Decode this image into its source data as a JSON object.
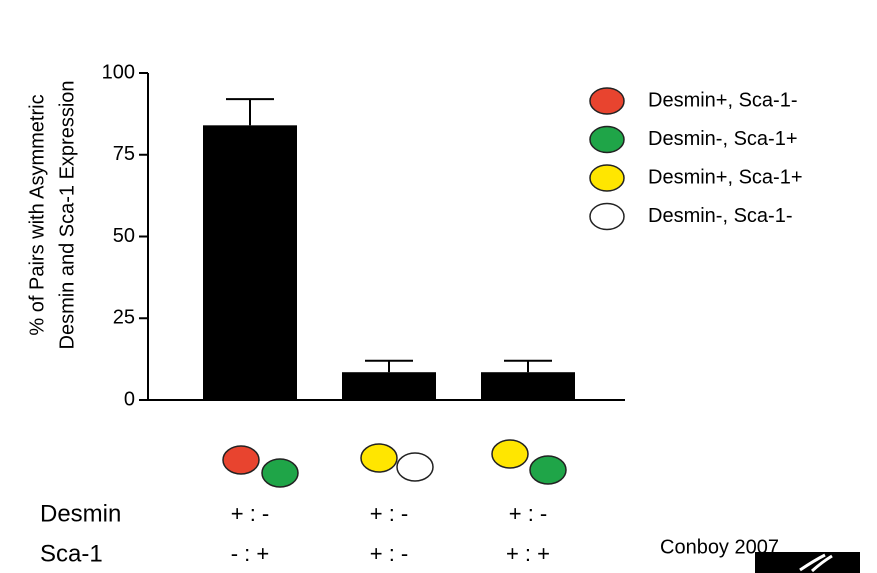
{
  "chart_data": {
    "type": "bar",
    "ylabel": [
      "% of Pairs with Asymmetric",
      "Desmin and Sca-1 Expression"
    ],
    "categories": [
      null,
      null,
      null
    ],
    "values": [
      84,
      8.5,
      8.5
    ],
    "errors": [
      8,
      3.5,
      3.5
    ],
    "color": "#000000",
    "ylim": [
      0,
      100
    ],
    "yticks": [
      0,
      25,
      50,
      75,
      100
    ],
    "legend": [
      {
        "name": "Desmin+, Sca-1-",
        "color": "#e8442f"
      },
      {
        "name": "Desmin-, Sca-1+",
        "color": "#1fa548"
      },
      {
        "name": "Desmin+, Sca-1+",
        "color": "#ffe600"
      },
      {
        "name": "Desmin-, Sca-1-",
        "color": "#ffffff"
      }
    ],
    "pairs": [
      [
        "#e8442f",
        "#1fa548"
      ],
      [
        "#ffe600",
        "#ffffff"
      ],
      [
        "#ffe600",
        "#1fa548"
      ]
    ],
    "rows": [
      {
        "label": "Desmin",
        "values": [
          "+ : -",
          "+ : -",
          "+ : -"
        ]
      },
      {
        "label": "Sca-1",
        "values": [
          "- : +",
          "+ : -",
          "+ : +"
        ]
      }
    ],
    "credit": "Conboy 2007"
  }
}
